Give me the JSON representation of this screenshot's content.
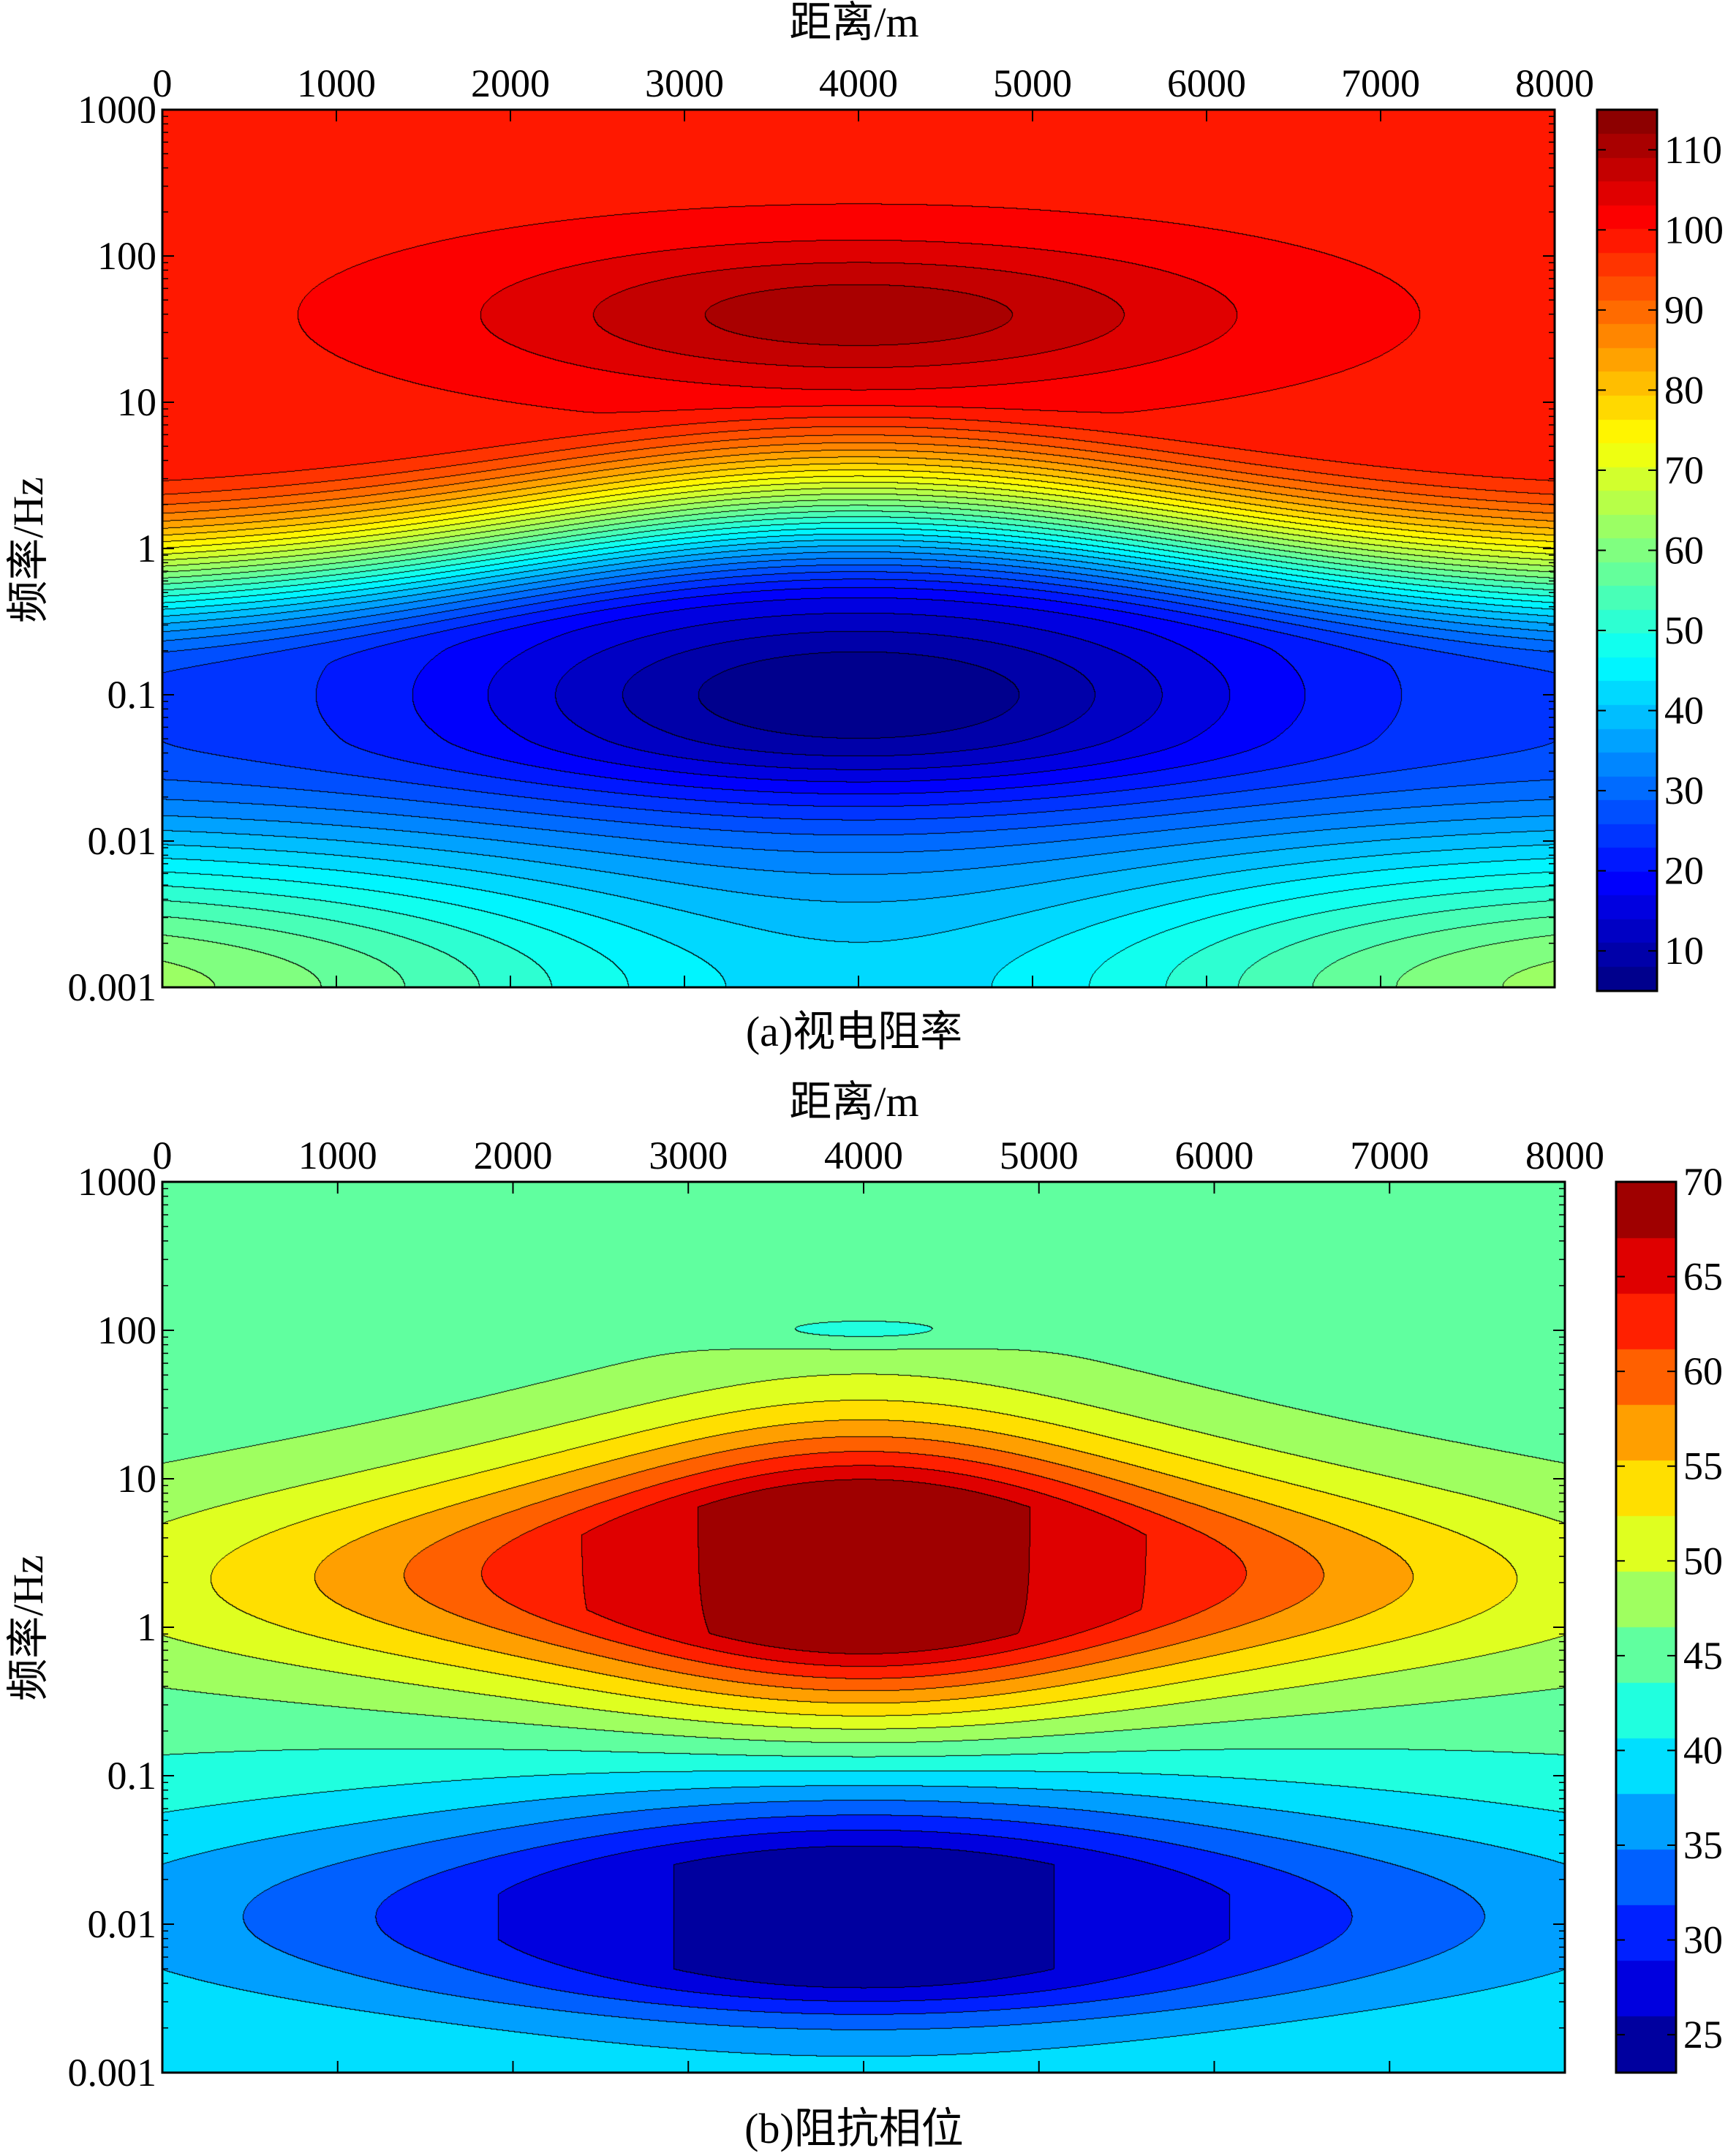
{
  "chart_data": [
    {
      "type": "heatmap",
      "panel": "a",
      "caption": "(a)视电阻率",
      "xlabel": "距离/m",
      "ylabel": "频率/Hz",
      "xlim": [
        0,
        8000
      ],
      "xticks": [
        0,
        1000,
        2000,
        3000,
        4000,
        5000,
        6000,
        7000,
        8000
      ],
      "xtick_labels": [
        "0",
        "1000",
        "2000",
        "3000",
        "4000",
        "5000",
        "6000",
        "7000",
        "8000"
      ],
      "y_scale": "log",
      "ylim": [
        0.001,
        1000
      ],
      "yticks": [
        0.001,
        0.01,
        0.1,
        1,
        10,
        100,
        1000
      ],
      "ytick_labels": [
        "0.001",
        "0.01",
        "0.1",
        "1",
        "10",
        "100",
        "1000"
      ],
      "colorbar": {
        "range": [
          5,
          115
        ],
        "ticks": [
          10,
          20,
          30,
          40,
          50,
          60,
          70,
          80,
          90,
          100,
          110
        ],
        "labels": [
          "10",
          "20",
          "30",
          "40",
          "50",
          "60",
          "70",
          "80",
          "90",
          "100",
          "110"
        ]
      },
      "field_model": {
        "x_center": 4000,
        "x_half_width": 4500,
        "background_high_freq": 99,
        "high_freq_peak": 111,
        "low_value_center": 5,
        "low_value_edge": 27,
        "low_freq_bottom_center": 42,
        "low_freq_bottom_edge": 66,
        "low_region_log_freq_center": -1.0,
        "transition_log_freq_center": 0.35,
        "transition_log_freq_edge": -0.2
      },
      "grid": false,
      "legend": "colorbar-right"
    },
    {
      "type": "heatmap",
      "panel": "b",
      "caption": "(b)阻抗相位",
      "xlabel": "距离/m",
      "ylabel": "频率/Hz",
      "xlim": [
        0,
        8000
      ],
      "xticks": [
        0,
        1000,
        2000,
        3000,
        4000,
        5000,
        6000,
        7000,
        8000
      ],
      "xtick_labels": [
        "0",
        "1000",
        "2000",
        "3000",
        "4000",
        "5000",
        "6000",
        "7000",
        "8000"
      ],
      "y_scale": "log",
      "ylim": [
        0.001,
        1000
      ],
      "yticks": [
        0.001,
        0.01,
        0.1,
        1,
        10,
        100,
        1000
      ],
      "ytick_labels": [
        "0.001",
        "0.01",
        "0.1",
        "1",
        "10",
        "100",
        "1000"
      ],
      "colorbar": {
        "range": [
          23,
          70
        ],
        "ticks": [
          25,
          30,
          35,
          40,
          45,
          50,
          55,
          60,
          65,
          70
        ],
        "labels": [
          "25",
          "30",
          "35",
          "40",
          "45",
          "50",
          "55",
          "60",
          "65",
          "70"
        ]
      },
      "field_model": {
        "x_center": 4000,
        "x_half_width": 4500,
        "background": 45,
        "high_phase_center": 70,
        "high_phase_edge": 62,
        "high_phase_log_freq_center": 0.4,
        "low_phase_center": 24,
        "low_phase_edge": 31,
        "low_phase_log_freq_center": -1.95,
        "bottom_value": 38
      },
      "grid": false,
      "legend": "colorbar-right"
    }
  ]
}
